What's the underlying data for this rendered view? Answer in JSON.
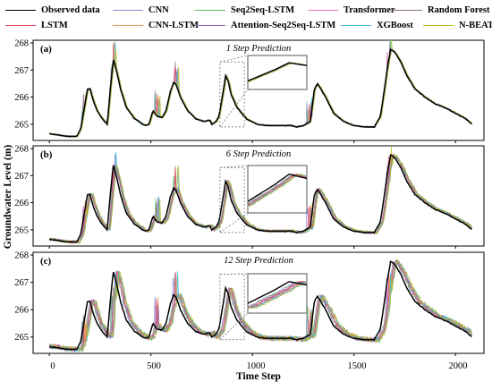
{
  "chart_data": {
    "type": "line",
    "legend_position": "top",
    "series": [
      {
        "name": "Observed data",
        "color": "#000000"
      },
      {
        "name": "CNN",
        "color": "#8c8ccf"
      },
      {
        "name": "Seq2Seq-LSTM",
        "color": "#5cb85c"
      },
      {
        "name": "Transformer",
        "color": "#e377c2"
      },
      {
        "name": "Random Forest",
        "color": "#8c6d8c"
      },
      {
        "name": "LSTM",
        "color": "#e8485a"
      },
      {
        "name": "CNN-LSTM",
        "color": "#e6a35c"
      },
      {
        "name": "Attention-Seq2Seq-LSTM",
        "color": "#9467bd"
      },
      {
        "name": "XGBoost",
        "color": "#3bbfdf"
      },
      {
        "name": "N-BEATS",
        "color": "#bcbd22"
      }
    ],
    "observed_profile": {
      "x": [
        0,
        90,
        135,
        155,
        172,
        188,
        200,
        215,
        235,
        260,
        285,
        300,
        315,
        330,
        350,
        380,
        420,
        470,
        490,
        510,
        530,
        555,
        575,
        595,
        612,
        625,
        645,
        680,
        720,
        760,
        790,
        800,
        820,
        835,
        858,
        868,
        880,
        895,
        925,
        970,
        1020,
        1070,
        1110,
        1150,
        1190,
        1220,
        1250,
        1285,
        1295,
        1305,
        1320,
        1360,
        1400,
        1450,
        1500,
        1550,
        1600,
        1630,
        1650,
        1665,
        1680,
        1695,
        1710,
        1730,
        1760,
        1800,
        1850,
        1900,
        1950,
        2000,
        2050,
        2080
      ],
      "y": [
        264.65,
        264.55,
        264.55,
        264.85,
        265.6,
        266.3,
        266.3,
        265.9,
        265.5,
        265.2,
        265.0,
        266.3,
        267.4,
        267.0,
        266.3,
        265.6,
        265.2,
        264.95,
        265.0,
        265.5,
        265.3,
        265.25,
        265.5,
        266.2,
        266.55,
        266.45,
        266.0,
        265.5,
        265.2,
        265.1,
        265.15,
        265.0,
        265.1,
        265.3,
        266.3,
        266.8,
        266.6,
        266.1,
        265.6,
        265.2,
        265.0,
        264.95,
        264.95,
        264.95,
        264.95,
        264.9,
        264.95,
        265.1,
        265.7,
        266.3,
        266.5,
        266.0,
        265.4,
        265.1,
        264.95,
        264.9,
        264.9,
        265.3,
        266.3,
        267.1,
        267.75,
        267.7,
        267.55,
        267.3,
        266.8,
        266.3,
        266.0,
        265.75,
        265.6,
        265.4,
        265.2,
        265.0
      ]
    },
    "panels": [
      {
        "label": "(a)",
        "title": "1 Step Prediction",
        "lag": 4,
        "noise": 0.05
      },
      {
        "label": "(b)",
        "title": "6 Step Prediction",
        "lag": 12,
        "noise": 0.1
      },
      {
        "label": "(c)",
        "title": "12 Step Prediction",
        "lag": 22,
        "noise": 0.17
      }
    ],
    "xlabel": "Time Step",
    "ylabel": "Groundwater Level (m)",
    "xlim": [
      -80,
      2140
    ],
    "ylim": [
      264.4,
      268.1
    ],
    "x_ticks": [
      "0",
      "500",
      "1000",
      "1500",
      "2000"
    ],
    "y_ticks": [
      "265",
      "266",
      "267",
      "268"
    ],
    "grid": false
  }
}
